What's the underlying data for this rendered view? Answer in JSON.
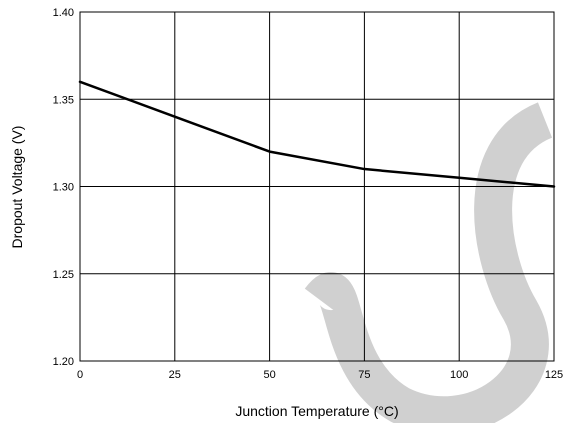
{
  "chart_data": {
    "type": "line",
    "title": "",
    "xlabel": "Junction Temperature (°C)",
    "ylabel": "Dropout Voltage (V)",
    "xlim": [
      0,
      125
    ],
    "ylim": [
      1.2,
      1.4
    ],
    "x_ticks": [
      0,
      25,
      50,
      75,
      100,
      125
    ],
    "y_ticks": [
      1.2,
      1.25,
      1.3,
      1.35,
      1.4
    ],
    "x_tick_labels": [
      "0",
      "25",
      "50",
      "75",
      "100",
      "125"
    ],
    "y_tick_labels": [
      "1.20",
      "1.25",
      "1.30",
      "1.35",
      "1.40"
    ],
    "grid": true,
    "series": [
      {
        "color": "#000000",
        "x": [
          0,
          25,
          50,
          75,
          100,
          125
        ],
        "y": [
          1.36,
          1.34,
          1.32,
          1.31,
          1.305,
          1.3
        ]
      }
    ]
  },
  "colors": {
    "line": "#000000",
    "grid": "#000000",
    "watermark": "#d0d0d0"
  }
}
